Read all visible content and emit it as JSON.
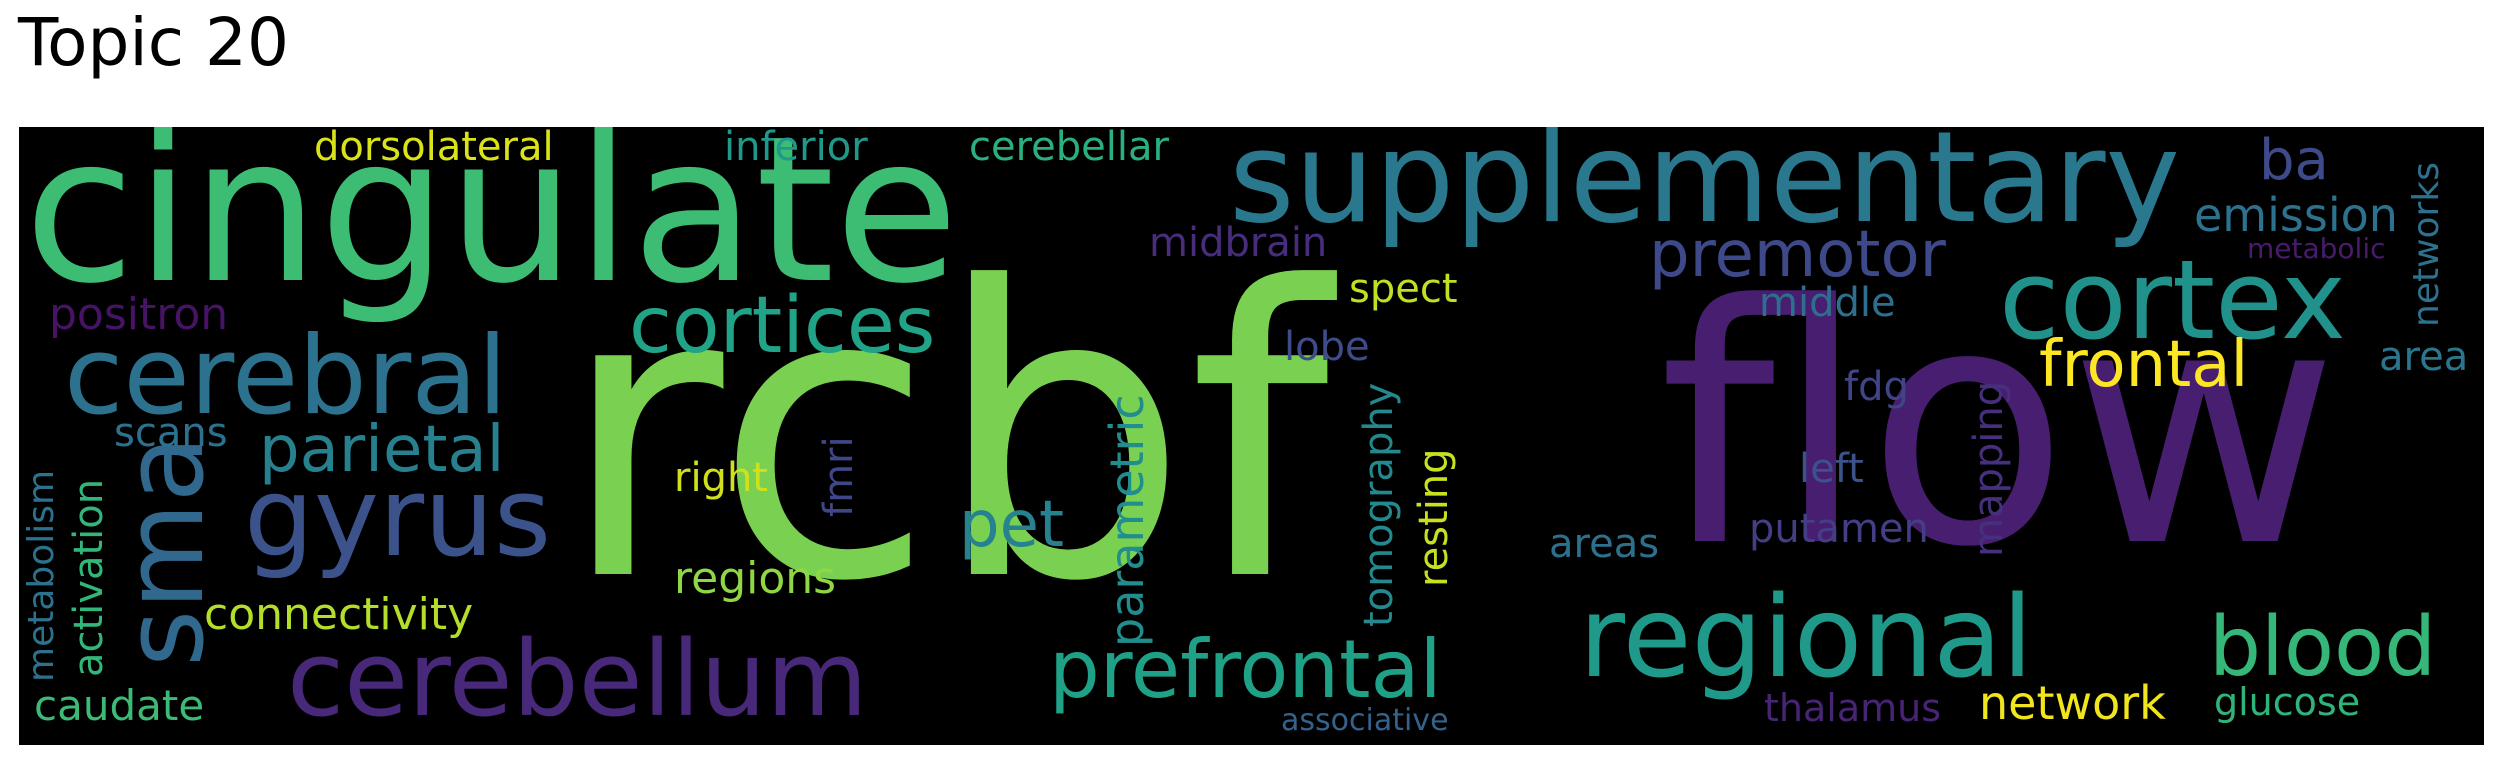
{
  "title": "Topic 20",
  "background": "#000000",
  "palette": {
    "green": "#7ad151",
    "teal_green": "#3dbc74",
    "teal": "#2a788e",
    "sea": "#22a884",
    "purple": "#482173",
    "indigo": "#414487",
    "yellow": "#fde725",
    "lime": "#bddf26",
    "dark_purple": "#440154"
  },
  "words": [
    {
      "text": "rcbf",
      "color": "#7ad151"
    },
    {
      "text": "flow",
      "color": "#481f70"
    },
    {
      "text": "cingulate",
      "color": "#3dbc74"
    },
    {
      "text": "supplementary",
      "color": "#2a788e"
    },
    {
      "text": "cortex",
      "color": "#21918c"
    },
    {
      "text": "regional",
      "color": "#1f9a8a"
    },
    {
      "text": "cerebral",
      "color": "#2c728e"
    },
    {
      "text": "gyrus",
      "color": "#3b528b"
    },
    {
      "text": "sma",
      "color": "#31688e"
    },
    {
      "text": "cerebellum",
      "color": "#482878"
    },
    {
      "text": "prefrontal",
      "color": "#1fa187"
    },
    {
      "text": "blood",
      "color": "#35b779"
    },
    {
      "text": "cortices",
      "color": "#20a386"
    },
    {
      "text": "premotor",
      "color": "#3e4989"
    },
    {
      "text": "frontal",
      "color": "#fde725"
    },
    {
      "text": "parietal",
      "color": "#27808e"
    },
    {
      "text": "pet",
      "color": "#26828e"
    },
    {
      "text": "ba",
      "color": "#3e4a89"
    },
    {
      "text": "emission",
      "color": "#2c728e"
    },
    {
      "text": "network",
      "color": "#f1e51d"
    },
    {
      "text": "parametric",
      "color": "#228d8d"
    },
    {
      "text": "connectivity",
      "color": "#b5de2b"
    },
    {
      "text": "caudate",
      "color": "#3bbb75"
    },
    {
      "text": "dorsolateral",
      "color": "#dae319"
    },
    {
      "text": "inferior",
      "color": "#1f998a"
    },
    {
      "text": "cerebellar",
      "color": "#2ab07f"
    },
    {
      "text": "midbrain",
      "color": "#472d7b"
    },
    {
      "text": "spect",
      "color": "#c2df23"
    },
    {
      "text": "middle",
      "color": "#2e6e8e"
    },
    {
      "text": "lobe",
      "color": "#3e4c8a"
    },
    {
      "text": "positron",
      "color": "#471365"
    },
    {
      "text": "scans",
      "color": "#2c728e"
    },
    {
      "text": "right",
      "color": "#d0e11c"
    },
    {
      "text": "regions",
      "color": "#8fd744"
    },
    {
      "text": "fmri",
      "color": "#3f4788"
    },
    {
      "text": "tomography",
      "color": "#23898e"
    },
    {
      "text": "resting",
      "color": "#c8e020"
    },
    {
      "text": "fdg",
      "color": "#414487"
    },
    {
      "text": "left",
      "color": "#3b528b"
    },
    {
      "text": "putamen",
      "color": "#433e85"
    },
    {
      "text": "areas",
      "color": "#2d708e"
    },
    {
      "text": "mapping",
      "color": "#46307e"
    },
    {
      "text": "thalamus",
      "color": "#482475"
    },
    {
      "text": "glucose",
      "color": "#2fb47c"
    },
    {
      "text": "associative",
      "color": "#33638d"
    },
    {
      "text": "networks",
      "color": "#2c728e"
    },
    {
      "text": "metabolic",
      "color": "#481b6d"
    },
    {
      "text": "area",
      "color": "#2a768e"
    },
    {
      "text": "metabolism",
      "color": "#2c728e"
    },
    {
      "text": "activation",
      "color": "#32b67a"
    }
  ]
}
